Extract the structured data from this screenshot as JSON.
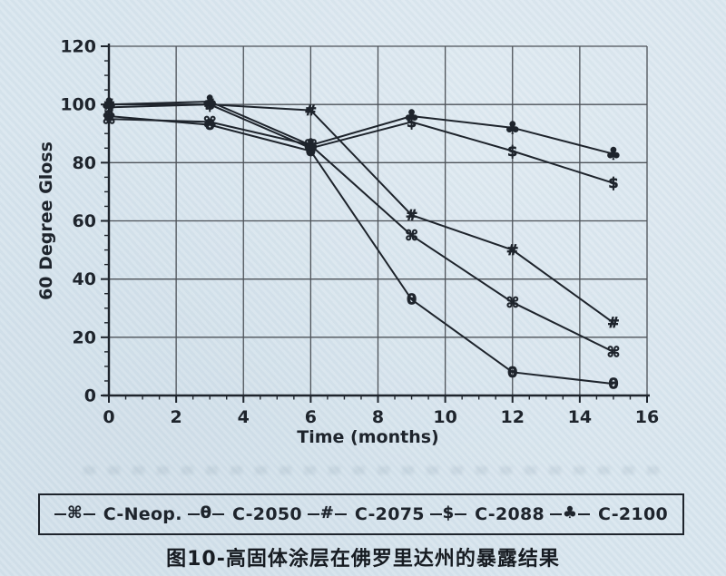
{
  "colors": {
    "paper": "#d8e5ee",
    "ink": "#1e242c",
    "grid": "#4d5258"
  },
  "caption": {
    "text": "图10-高固体涂层在佛罗里达州的暴露结果"
  },
  "legend": {
    "entries": [
      {
        "marker": "⌘",
        "label": "C-Neop."
      },
      {
        "marker": "θ",
        "label": "C-2050"
      },
      {
        "marker": "#",
        "label": "C-2075"
      },
      {
        "marker": "$",
        "label": "C-2088"
      },
      {
        "marker": "♣",
        "label": "C-2100"
      }
    ]
  },
  "chart_data": {
    "type": "line",
    "title": "",
    "xlabel": "Time (months)",
    "ylabel": "60 Degree Gloss",
    "xlim": [
      0,
      16
    ],
    "ylim": [
      0,
      120
    ],
    "x_ticks": [
      0,
      2,
      4,
      6,
      8,
      10,
      12,
      14,
      16
    ],
    "y_ticks": [
      0,
      20,
      40,
      60,
      80,
      100,
      120
    ],
    "x_minor_step": 0.5,
    "y_minor_step": 5,
    "grid": true,
    "legend_position": "bottom",
    "x": [
      0,
      3,
      6,
      9,
      12,
      15
    ],
    "series": [
      {
        "name": "C-Neop.",
        "marker": "⌘",
        "marker_size": 16,
        "values": [
          95,
          94,
          86,
          55,
          32,
          15
        ]
      },
      {
        "name": "C-2050",
        "marker": "θ",
        "marker_size": 16,
        "values": [
          96,
          93,
          84,
          33,
          8,
          4
        ]
      },
      {
        "name": "C-2075",
        "marker": "#",
        "marker_size": 16,
        "values": [
          100,
          100,
          98,
          62,
          50,
          25
        ]
      },
      {
        "name": "C-2088",
        "marker": "$",
        "marker_size": 16,
        "values": [
          99,
          100,
          85,
          94,
          84,
          73
        ]
      },
      {
        "name": "C-2100",
        "marker": "♣",
        "marker_size": 19,
        "values": [
          100,
          101,
          86,
          96,
          92,
          83
        ]
      }
    ]
  }
}
